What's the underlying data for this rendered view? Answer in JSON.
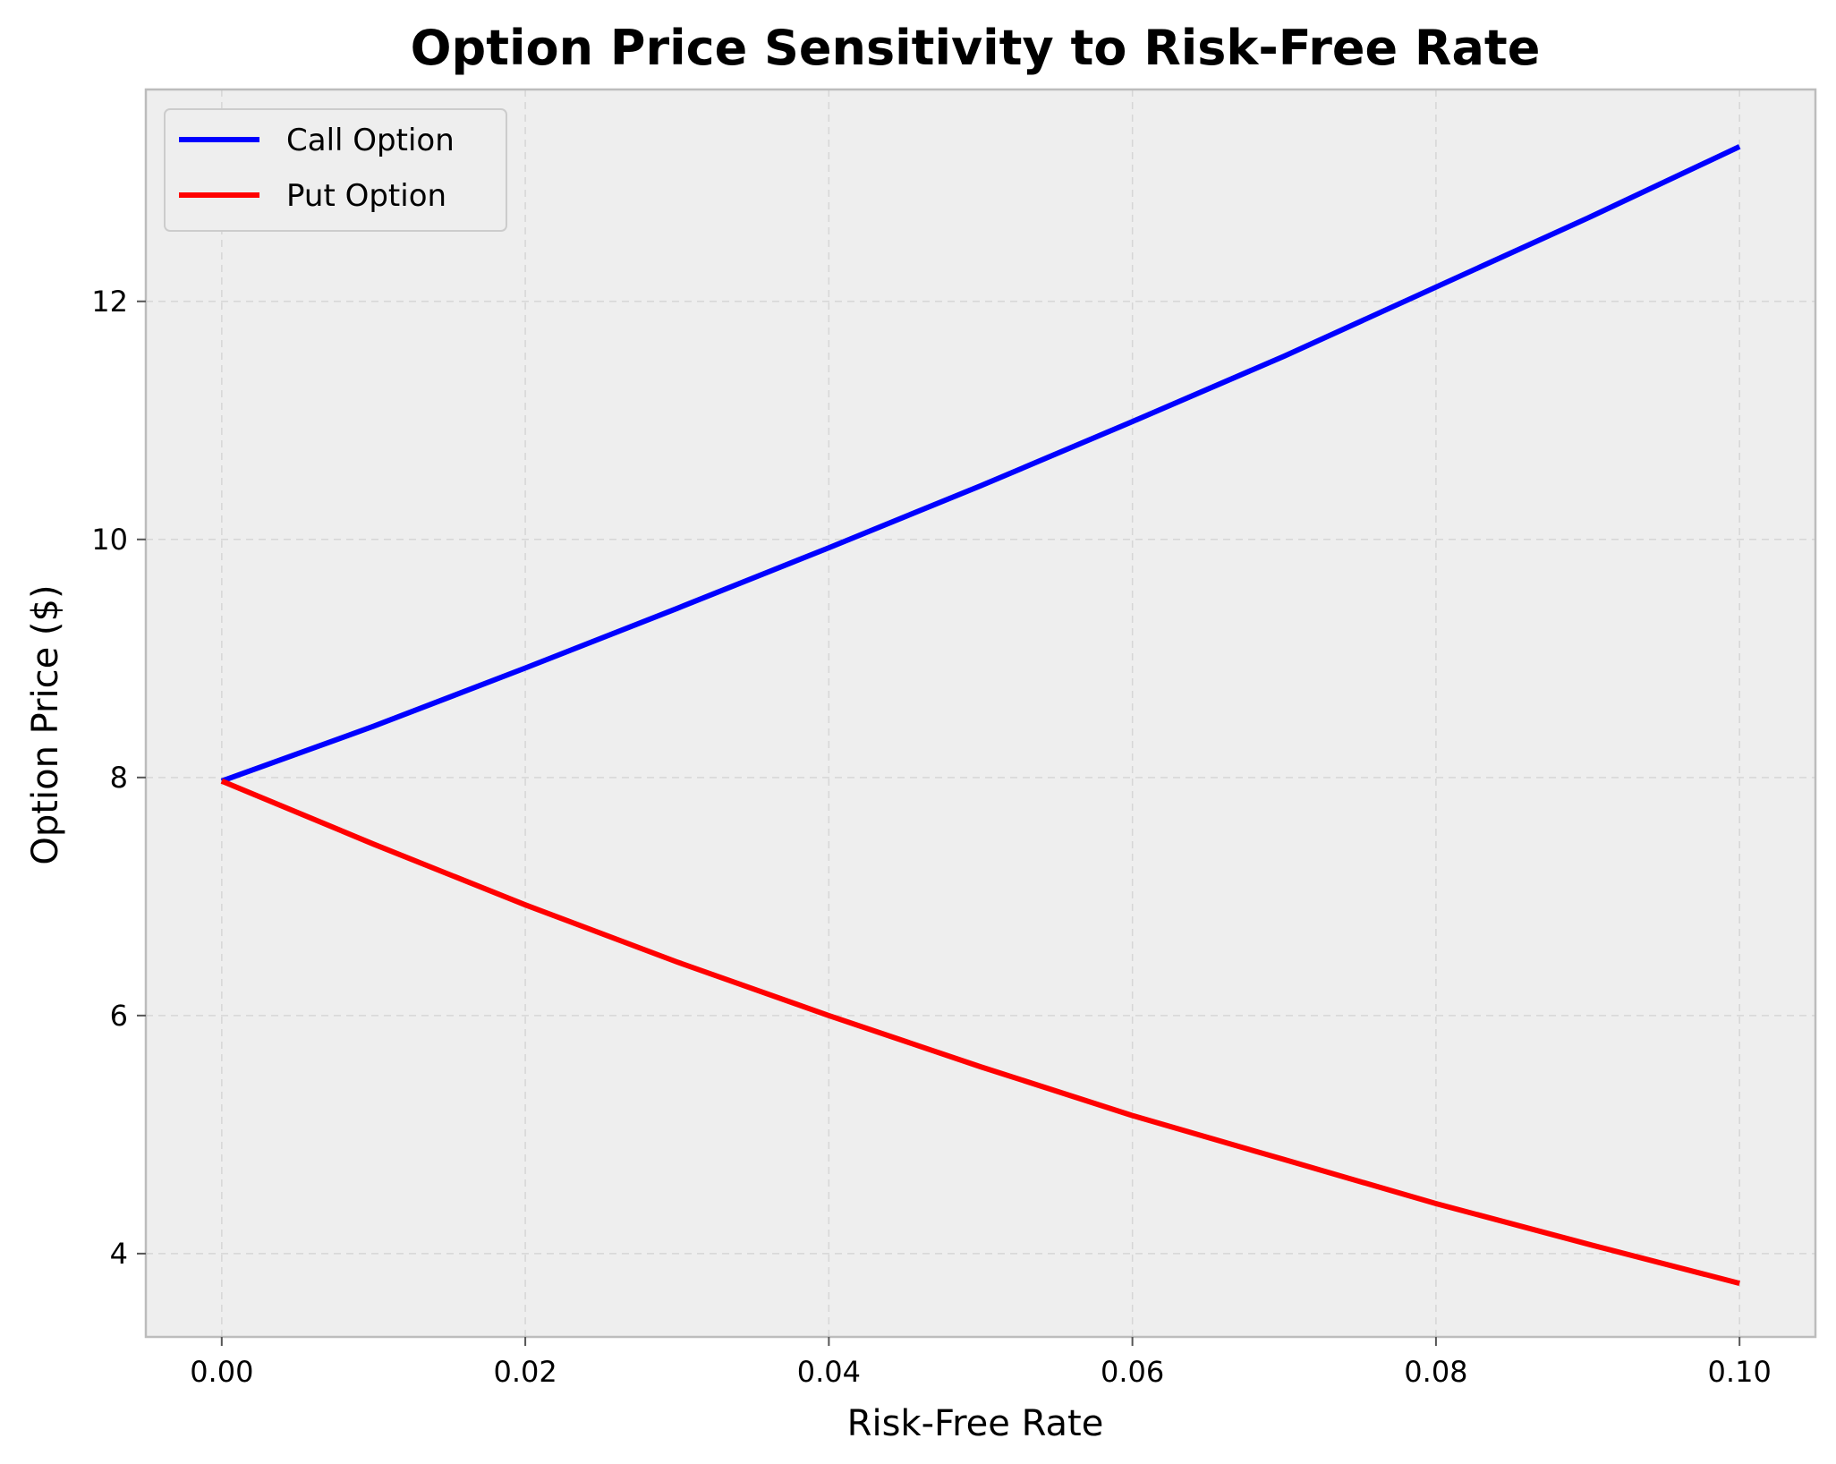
{
  "chart_data": {
    "type": "line",
    "title": "Option Price Sensitivity to Risk-Free Rate",
    "xlabel": "Risk-Free Rate",
    "ylabel": "Option Price ($)",
    "xlim": [
      -0.005,
      0.105
    ],
    "ylim": [
      3.3,
      13.78
    ],
    "x_ticks": [
      0.0,
      0.02,
      0.04,
      0.06,
      0.08,
      0.1
    ],
    "x_tick_labels": [
      "0.00",
      "0.02",
      "0.04",
      "0.06",
      "0.08",
      "0.10"
    ],
    "y_ticks": [
      4,
      6,
      8,
      10,
      12
    ],
    "y_tick_labels": [
      "4",
      "6",
      "8",
      "10",
      "12"
    ],
    "grid": true,
    "legend_position": "top-left",
    "x": [
      0.0,
      0.01,
      0.02,
      0.03,
      0.04,
      0.05,
      0.06,
      0.07,
      0.08,
      0.09,
      0.1
    ],
    "series": [
      {
        "name": "Call Option",
        "color": "#0000ff",
        "values": [
          7.97,
          8.43,
          8.92,
          9.42,
          9.93,
          10.45,
          10.99,
          11.54,
          12.12,
          12.7,
          13.3
        ]
      },
      {
        "name": "Put Option",
        "color": "#ff0000",
        "values": [
          7.97,
          7.44,
          6.93,
          6.45,
          6.0,
          5.57,
          5.16,
          4.79,
          4.42,
          4.08,
          3.75
        ]
      }
    ],
    "colors": {
      "plot_background": "#eeeeee",
      "axes_edge": "#bcbcbc"
    }
  }
}
